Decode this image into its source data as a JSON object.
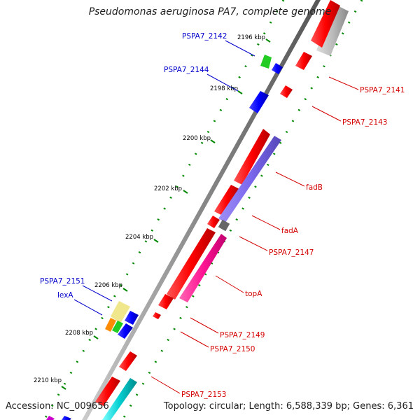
{
  "title": "Pseudomonas aeruginosa PA7, complete genome",
  "footer": {
    "accession": "Accession: NC_009656",
    "topology": "Topology: circular; Length: 6,588,339 bp; Genes: 6,361"
  },
  "ticks": [
    "2196 kbp",
    "2198 kbp",
    "2200 kbp",
    "2202 kbp",
    "2204 kbp",
    "2206 kbp",
    "2208 kbp",
    "2210 kbp"
  ],
  "labels_outer": [
    "PSPA7_2141",
    "PSPA7_2143",
    "fadB",
    "fadA",
    "PSPA7_2147",
    "topA",
    "PSPA7_2149",
    "PSPA7_2150",
    "PSPA7_2153"
  ],
  "labels_inner": [
    "PSPA7_2142",
    "PSPA7_2144",
    "PSPA7_2151",
    "lexA"
  ],
  "colors": {
    "forward_gene": "#ff0000",
    "reverse_gene": "#0000ff",
    "fad_track": "#7b68ee",
    "topA_track": "#ff1493",
    "inner_green": "#22cc22",
    "inner_yellow": "#f0e68c",
    "inner_orange": "#ff8c00",
    "cyan_track": "#00ced1",
    "grey_track": "#b0b0b0",
    "backbone": "#777777",
    "tick_green": "#008800",
    "label_outer": "#d40000",
    "label_inner": "#0000cc"
  }
}
